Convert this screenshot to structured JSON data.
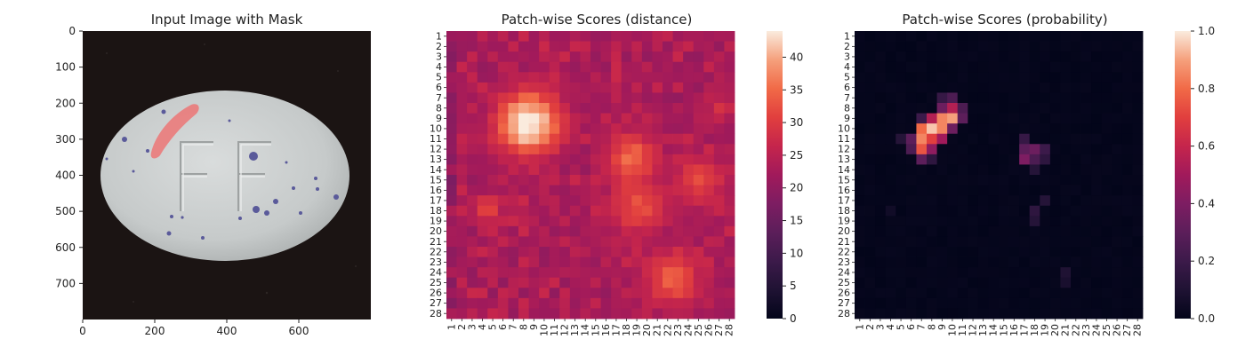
{
  "chart_data": [
    {
      "type": "image",
      "title": "Input Image with Mask",
      "x_ticks": [
        0,
        200,
        400,
        600
      ],
      "y_ticks": [
        0,
        100,
        200,
        300,
        400,
        500,
        600,
        700
      ],
      "xlim": [
        0,
        800
      ],
      "ylim": [
        800,
        0
      ]
    },
    {
      "type": "heatmap",
      "title": "Patch-wise Scores (distance)",
      "rows": 28,
      "cols": 28,
      "tick_labels": [
        "1",
        "2",
        "3",
        "4",
        "5",
        "6",
        "7",
        "8",
        "9",
        "10",
        "11",
        "12",
        "13",
        "14",
        "15",
        "16",
        "17",
        "18",
        "19",
        "20",
        "21",
        "22",
        "23",
        "24",
        "25",
        "26",
        "27",
        "28"
      ],
      "colorbar_ticks": [
        0,
        5,
        10,
        15,
        20,
        25,
        30,
        35,
        40
      ],
      "vmin": 0,
      "vmax": 44,
      "colormap": "rocket",
      "background_range": [
        17,
        27
      ],
      "hotspots": [
        {
          "row": 9.5,
          "col": 8.5,
          "peak": 44,
          "spread": 2.2
        },
        {
          "row": 13,
          "col": 18.5,
          "peak": 34,
          "spread": 1.8
        },
        {
          "row": 17.5,
          "col": 19,
          "peak": 31,
          "spread": 2.0
        },
        {
          "row": 24.5,
          "col": 22.5,
          "peak": 32,
          "spread": 2.0
        },
        {
          "row": 15,
          "col": 25,
          "peak": 30,
          "spread": 1.8
        },
        {
          "row": 18,
          "col": 4.5,
          "peak": 30,
          "spread": 1.0
        },
        {
          "row": 8,
          "col": 27,
          "peak": 26,
          "spread": 1.2
        }
      ]
    },
    {
      "type": "heatmap",
      "title": "Patch-wise Scores (probability)",
      "rows": 28,
      "cols": 28,
      "tick_labels": [
        "1",
        "2",
        "3",
        "4",
        "5",
        "6",
        "7",
        "8",
        "9",
        "10",
        "11",
        "12",
        "13",
        "14",
        "15",
        "16",
        "17",
        "18",
        "19",
        "20",
        "21",
        "22",
        "23",
        "24",
        "25",
        "26",
        "27",
        "28"
      ],
      "colorbar_ticks": [
        0.0,
        0.2,
        0.4,
        0.6,
        0.8,
        1.0
      ],
      "colorbar_tick_labels": [
        "0.0",
        "0.2",
        "0.4",
        "0.6",
        "0.8",
        "1.0"
      ],
      "vmin": 0,
      "vmax": 1,
      "colormap": "rocket",
      "cells": [
        [
          7,
          9,
          0.18
        ],
        [
          7,
          10,
          0.25
        ],
        [
          8,
          9,
          0.35
        ],
        [
          8,
          10,
          0.55
        ],
        [
          8,
          11,
          0.25
        ],
        [
          9,
          8,
          0.55
        ],
        [
          9,
          9,
          0.85
        ],
        [
          9,
          10,
          0.9
        ],
        [
          9,
          11,
          0.3
        ],
        [
          9,
          7,
          0.2
        ],
        [
          10,
          7,
          0.8
        ],
        [
          10,
          8,
          0.95
        ],
        [
          10,
          9,
          0.85
        ],
        [
          10,
          10,
          0.35
        ],
        [
          11,
          6,
          0.3
        ],
        [
          11,
          7,
          0.85
        ],
        [
          11,
          8,
          0.7
        ],
        [
          11,
          9,
          0.5
        ],
        [
          11,
          5,
          0.12
        ],
        [
          12,
          6,
          0.25
        ],
        [
          12,
          7,
          0.75
        ],
        [
          12,
          8,
          0.45
        ],
        [
          13,
          7,
          0.3
        ],
        [
          13,
          8,
          0.15
        ],
        [
          11,
          17,
          0.18
        ],
        [
          12,
          17,
          0.3
        ],
        [
          12,
          18,
          0.35
        ],
        [
          13,
          17,
          0.4
        ],
        [
          13,
          18,
          0.25
        ],
        [
          12,
          19,
          0.2
        ],
        [
          13,
          19,
          0.15
        ],
        [
          14,
          18,
          0.12
        ],
        [
          18,
          18,
          0.15
        ],
        [
          19,
          18,
          0.12
        ],
        [
          17,
          19,
          0.12
        ],
        [
          24,
          21,
          0.1
        ],
        [
          25,
          21,
          0.08
        ],
        [
          18,
          4,
          0.05
        ]
      ],
      "baseline": 0.015
    }
  ]
}
